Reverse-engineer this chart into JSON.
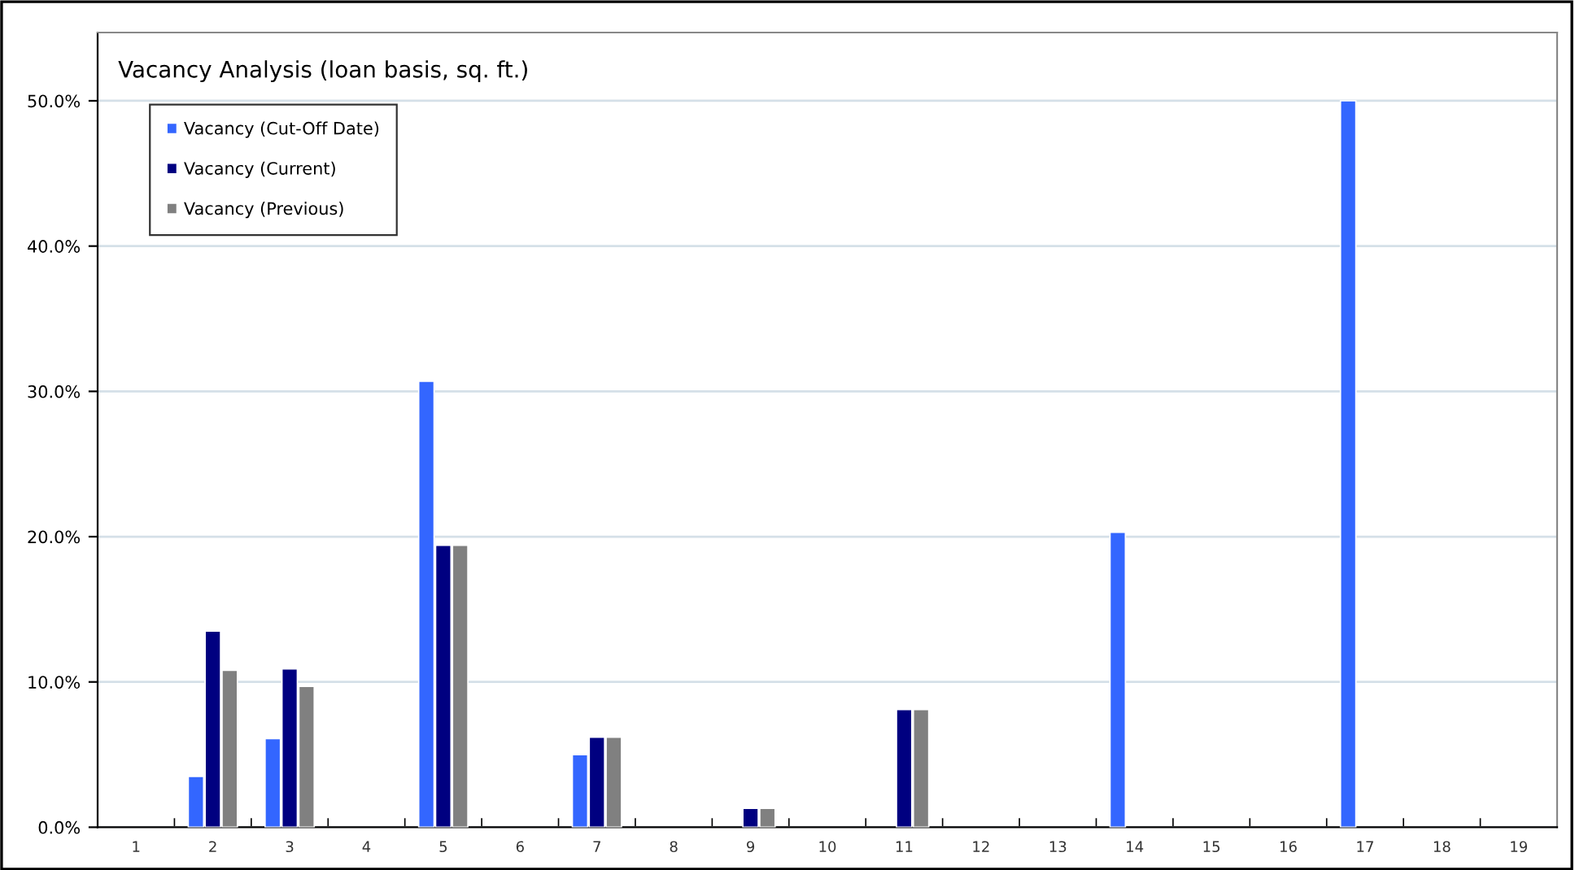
{
  "chart_data": {
    "type": "bar",
    "title": "Vacancy Analysis (loan basis, sq. ft.)",
    "categories": [
      "1",
      "2",
      "3",
      "4",
      "5",
      "6",
      "7",
      "8",
      "9",
      "10",
      "11",
      "12",
      "13",
      "14",
      "15",
      "16",
      "17",
      "18",
      "19"
    ],
    "series": [
      {
        "name": "Vacancy (Cut-Off Date)",
        "color": "#3366ff",
        "values": [
          null,
          3.5,
          6.1,
          null,
          30.7,
          null,
          5.0,
          null,
          null,
          null,
          null,
          null,
          null,
          20.3,
          null,
          null,
          50.0,
          null,
          null
        ]
      },
      {
        "name": "Vacancy (Current)",
        "color": "#000080",
        "values": [
          null,
          13.5,
          10.9,
          null,
          19.4,
          null,
          6.2,
          null,
          1.3,
          null,
          8.1,
          null,
          null,
          null,
          null,
          null,
          null,
          null,
          null
        ]
      },
      {
        "name": "Vacancy (Previous)",
        "color": "#808080",
        "values": [
          null,
          10.8,
          9.7,
          null,
          19.4,
          null,
          6.2,
          null,
          1.3,
          null,
          8.1,
          null,
          null,
          null,
          null,
          null,
          null,
          null,
          null
        ]
      }
    ],
    "ylim": [
      0,
      54.7
    ],
    "yticks": [
      {
        "value": 0,
        "label": "0.0%"
      },
      {
        "value": 10,
        "label": "10.0%"
      },
      {
        "value": 20,
        "label": "20.0%"
      },
      {
        "value": 30,
        "label": "30.0%"
      },
      {
        "value": 40,
        "label": "40.0%"
      },
      {
        "value": 50,
        "label": "50.0%"
      }
    ],
    "grid": "y",
    "legend": "top left"
  }
}
